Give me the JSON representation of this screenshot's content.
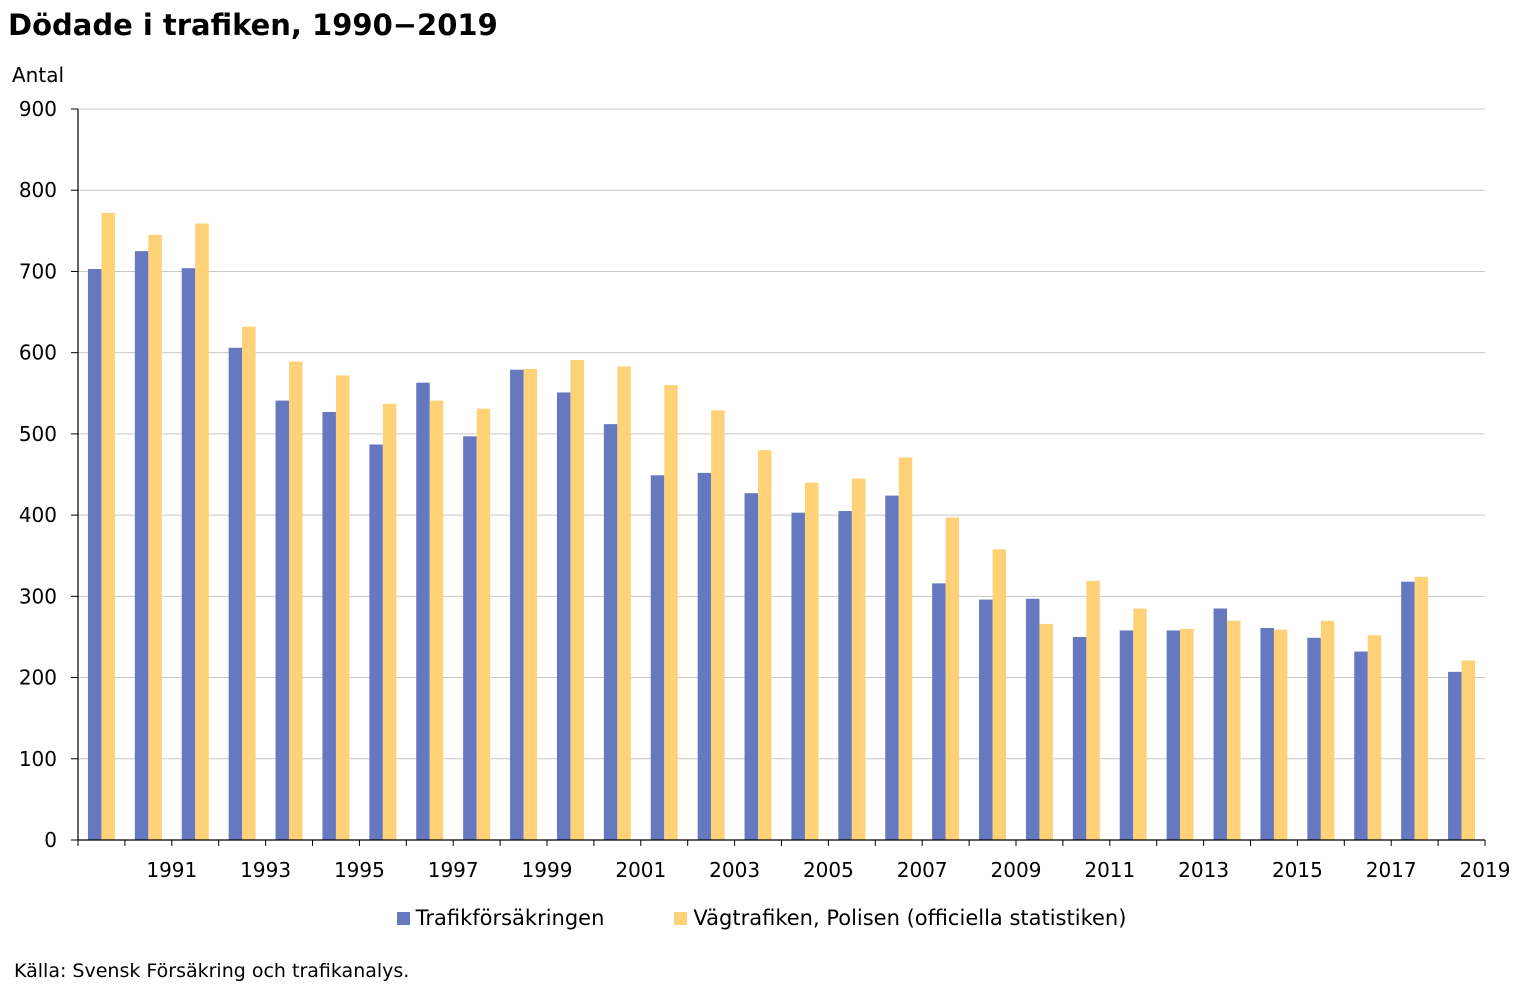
{
  "title": "Dödade i trafiken, 1990−2019",
  "source": "Källa: Svensk Försäkring och trafikanalys.",
  "chart_data": {
    "type": "bar",
    "title": "Dödade i trafiken, 1990−2019",
    "ylabel": "Antal",
    "xlabel": "",
    "ylim": [
      0,
      900
    ],
    "yticks": [
      0,
      100,
      200,
      300,
      400,
      500,
      600,
      700,
      800,
      900
    ],
    "categories": [
      1990,
      1991,
      1992,
      1993,
      1994,
      1995,
      1996,
      1997,
      1998,
      1999,
      2000,
      2001,
      2002,
      2003,
      2004,
      2005,
      2006,
      2007,
      2008,
      2009,
      2010,
      2011,
      2012,
      2013,
      2014,
      2015,
      2016,
      2017,
      2018,
      2019
    ],
    "xtick_labels": [
      "1991",
      "1993",
      "1995",
      "1997",
      "1999",
      "2001",
      "2003",
      "2005",
      "2007",
      "2009",
      "2011",
      "2013",
      "2015",
      "2017",
      "2019"
    ],
    "grid": true,
    "legend_position": "bottom",
    "series": [
      {
        "name": "Trafikförsäkringen",
        "color": "#6678bf",
        "values": [
          703,
          725,
          704,
          606,
          541,
          527,
          487,
          563,
          497,
          579,
          551,
          512,
          449,
          452,
          427,
          403,
          405,
          424,
          316,
          296,
          297,
          250,
          258,
          258,
          285,
          261,
          249,
          232,
          318,
          207
        ]
      },
      {
        "name": "Vägtrafiken, Polisen (officiella statistiken)",
        "color": "#ffd278",
        "values": [
          772,
          745,
          759,
          632,
          589,
          572,
          537,
          541,
          531,
          580,
          591,
          583,
          560,
          529,
          480,
          440,
          445,
          471,
          397,
          358,
          266,
          319,
          285,
          260,
          270,
          259,
          270,
          252,
          324,
          221
        ]
      }
    ]
  }
}
